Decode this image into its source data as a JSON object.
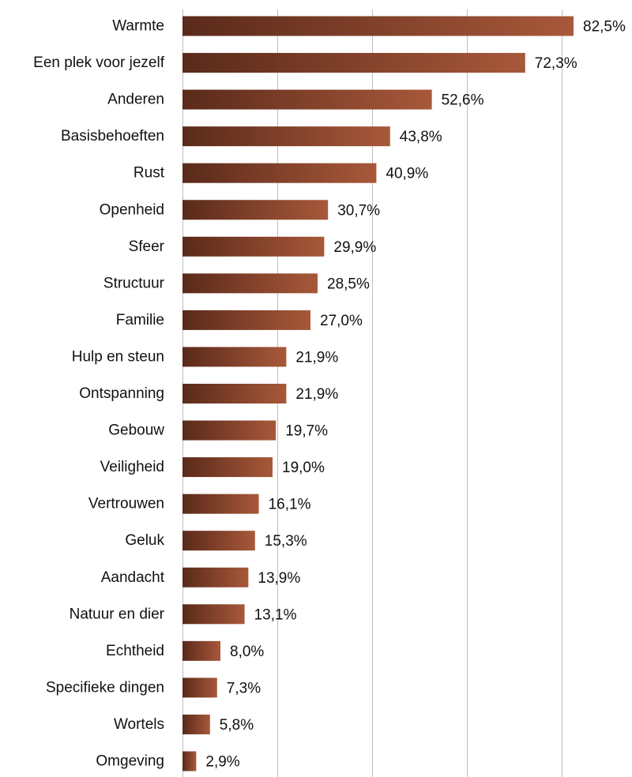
{
  "chart_data": {
    "type": "bar",
    "orientation": "horizontal",
    "title": "",
    "xlabel": "",
    "ylabel": "",
    "categories": [
      "Warmte",
      "Een plek voor jezelf",
      "Anderen",
      "Basisbehoeften",
      "Rust",
      "Openheid",
      "Sfeer",
      "Structuur",
      "Familie",
      "Hulp en steun",
      "Ontspanning",
      "Gebouw",
      "Veiligheid",
      "Vertrouwen",
      "Geluk",
      "Aandacht",
      "Natuur en dier",
      "Echtheid",
      "Specifieke dingen",
      "Wortels",
      "Omgeving"
    ],
    "values": [
      82.5,
      72.3,
      52.6,
      43.8,
      40.9,
      30.7,
      29.9,
      28.5,
      27.0,
      21.9,
      21.9,
      19.7,
      19.0,
      16.1,
      15.3,
      13.9,
      13.1,
      8.0,
      7.3,
      5.8,
      2.9
    ],
    "value_labels": [
      "82,5%",
      "72,3%",
      "52,6%",
      "43,8%",
      "40,9%",
      "30,7%",
      "29,9%",
      "28,5%",
      "27,0%",
      "21,9%",
      "21,9%",
      "19,7%",
      "19,0%",
      "16,1%",
      "15,3%",
      "13,9%",
      "13,1%",
      "8,0%",
      "7,3%",
      "5,8%",
      "2,9%"
    ],
    "xlim": [
      0,
      100
    ],
    "grid": true,
    "gridline_values": [
      0,
      20,
      40,
      60,
      80,
      100
    ],
    "legend": "none",
    "colors": {
      "bar_dark": "#5a2a1a",
      "bar_light": "#a8583a",
      "grid": "#bdbdbd",
      "text": "#111111"
    }
  }
}
